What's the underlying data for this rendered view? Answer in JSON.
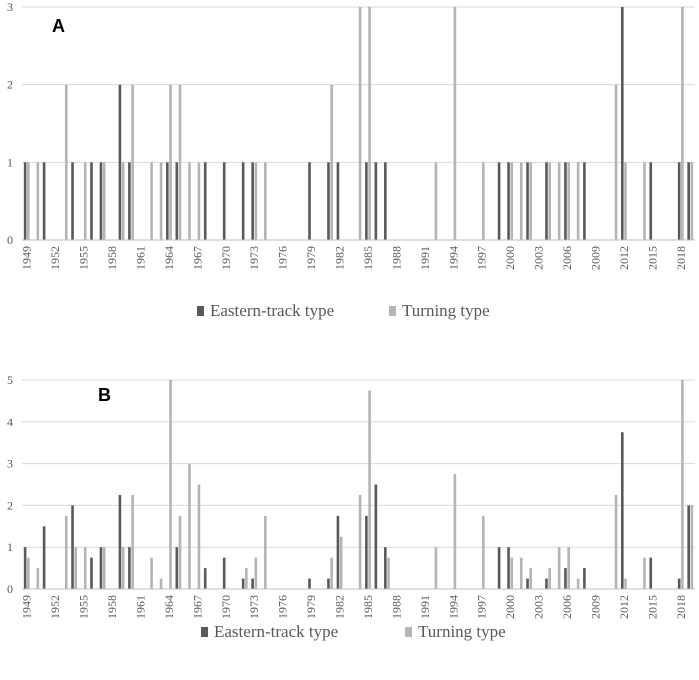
{
  "colors": {
    "eastern": "#595959",
    "turning": "#b4b4b4",
    "grid": "#d9d9d9",
    "axis": "#bfbfbf",
    "text": "#595959"
  },
  "chart_data": [
    {
      "id": "A",
      "type": "bar",
      "panel_label": "A",
      "ylim": [
        0,
        3
      ],
      "yticks": [
        "0",
        "1",
        "2",
        "3"
      ],
      "grid": true,
      "legend_position": "bottom",
      "x_tick_labels": [
        "1949",
        "1952",
        "1955",
        "1958",
        "1961",
        "1964",
        "1967",
        "1970",
        "1973",
        "1976",
        "1979",
        "1982",
        "1985",
        "1988",
        "1991",
        "1994",
        "1997",
        "2000",
        "2003",
        "2006",
        "2009",
        "2012",
        "2015",
        "2018"
      ],
      "categories": [
        "1949",
        "1950",
        "1951",
        "1952",
        "1953",
        "1954",
        "1955",
        "1956",
        "1957",
        "1958",
        "1959",
        "1960",
        "1961",
        "1962",
        "1963",
        "1964",
        "1965",
        "1966",
        "1967",
        "1968",
        "1969",
        "1970",
        "1971",
        "1972",
        "1973",
        "1974",
        "1975",
        "1976",
        "1977",
        "1978",
        "1979",
        "1980",
        "1981",
        "1982",
        "1983",
        "1984",
        "1985",
        "1986",
        "1987",
        "1988",
        "1989",
        "1990",
        "1991",
        "1992",
        "1993",
        "1994",
        "1995",
        "1996",
        "1997",
        "1998",
        "1999",
        "2000",
        "2001",
        "2002",
        "2003",
        "2004",
        "2005",
        "2006",
        "2007",
        "2008",
        "2009",
        "2010",
        "2011",
        "2012",
        "2013",
        "2014",
        "2015",
        "2016",
        "2017",
        "2018",
        "2019"
      ],
      "series": [
        {
          "name": "Eastern-track type",
          "values": [
            1,
            0,
            1,
            0,
            0,
            1,
            0,
            1,
            1,
            0,
            2,
            1,
            0,
            0,
            0,
            1,
            1,
            0,
            0,
            1,
            0,
            1,
            0,
            1,
            1,
            0,
            0,
            0,
            0,
            0,
            1,
            0,
            1,
            1,
            0,
            0,
            1,
            1,
            1,
            0,
            0,
            0,
            0,
            0,
            0,
            0,
            0,
            0,
            0,
            0,
            1,
            1,
            0,
            1,
            0,
            1,
            0,
            1,
            0,
            1,
            0,
            0,
            0,
            3,
            0,
            0,
            1,
            0,
            0,
            1,
            1
          ]
        },
        {
          "name": "Turning type",
          "values": [
            1,
            1,
            0,
            0,
            2,
            0,
            1,
            0,
            1,
            0,
            1,
            2,
            0,
            1,
            1,
            2,
            2,
            1,
            1,
            0,
            0,
            0,
            0,
            0,
            1,
            1,
            0,
            0,
            0,
            0,
            0,
            0,
            2,
            0,
            0,
            3,
            3,
            0,
            0,
            0,
            0,
            0,
            0,
            1,
            0,
            3,
            0,
            0,
            1,
            0,
            0,
            1,
            1,
            1,
            0,
            1,
            1,
            1,
            1,
            0,
            0,
            0,
            2,
            1,
            0,
            1,
            0,
            0,
            0,
            3,
            1
          ]
        }
      ]
    },
    {
      "id": "B",
      "type": "bar",
      "panel_label": "B",
      "ylim": [
        0,
        5
      ],
      "yticks": [
        "0",
        "1",
        "2",
        "3",
        "4",
        "5"
      ],
      "grid": true,
      "legend_position": "bottom",
      "x_tick_labels": [
        "1949",
        "1952",
        "1955",
        "1958",
        "1961",
        "1964",
        "1967",
        "1970",
        "1973",
        "1976",
        "1979",
        "1982",
        "1985",
        "1988",
        "1991",
        "1994",
        "1997",
        "2000",
        "2003",
        "2006",
        "2009",
        "2012",
        "2015",
        "2018"
      ],
      "categories": [
        "1949",
        "1950",
        "1951",
        "1952",
        "1953",
        "1954",
        "1955",
        "1956",
        "1957",
        "1958",
        "1959",
        "1960",
        "1961",
        "1962",
        "1963",
        "1964",
        "1965",
        "1966",
        "1967",
        "1968",
        "1969",
        "1970",
        "1971",
        "1972",
        "1973",
        "1974",
        "1975",
        "1976",
        "1977",
        "1978",
        "1979",
        "1980",
        "1981",
        "1982",
        "1983",
        "1984",
        "1985",
        "1986",
        "1987",
        "1988",
        "1989",
        "1990",
        "1991",
        "1992",
        "1993",
        "1994",
        "1995",
        "1996",
        "1997",
        "1998",
        "1999",
        "2000",
        "2001",
        "2002",
        "2003",
        "2004",
        "2005",
        "2006",
        "2007",
        "2008",
        "2009",
        "2010",
        "2011",
        "2012",
        "2013",
        "2014",
        "2015",
        "2016",
        "2017",
        "2018",
        "2019"
      ],
      "series": [
        {
          "name": "Eastern-track type",
          "values": [
            1,
            0,
            1.5,
            0,
            0,
            2,
            0,
            0.75,
            1,
            0,
            2.25,
            1,
            0,
            0,
            0,
            0,
            1,
            0,
            0,
            0.5,
            0,
            0.75,
            0,
            0.25,
            0.25,
            0,
            0,
            0,
            0,
            0,
            0.25,
            0,
            0.25,
            1.75,
            0,
            0,
            1.75,
            2.5,
            1,
            0,
            0,
            0,
            0,
            0,
            0,
            0,
            0,
            0,
            0,
            0,
            1,
            1,
            0,
            0.25,
            0,
            0.25,
            0,
            0.5,
            0,
            0.5,
            0,
            0,
            0,
            3.75,
            0,
            0,
            0.75,
            0,
            0,
            0.25,
            2
          ]
        },
        {
          "name": "Turning type",
          "values": [
            0.75,
            0.5,
            0,
            0,
            1.75,
            1,
            1,
            0,
            1,
            0,
            1,
            2.25,
            0,
            0.75,
            0.25,
            5,
            1.75,
            3,
            2.5,
            0,
            0,
            0,
            0,
            0.5,
            0.75,
            1.75,
            0,
            0,
            0,
            0,
            0,
            0,
            0.75,
            1.25,
            0,
            2.25,
            4.75,
            0,
            0.75,
            0,
            0,
            0,
            0,
            1,
            0,
            2.75,
            0,
            0,
            1.75,
            0,
            0,
            0.75,
            0.75,
            0.5,
            0,
            0.5,
            1,
            1,
            0.25,
            0,
            0,
            0,
            2.25,
            0.25,
            0,
            0.75,
            0,
            0,
            0,
            5,
            2
          ]
        }
      ]
    }
  ]
}
